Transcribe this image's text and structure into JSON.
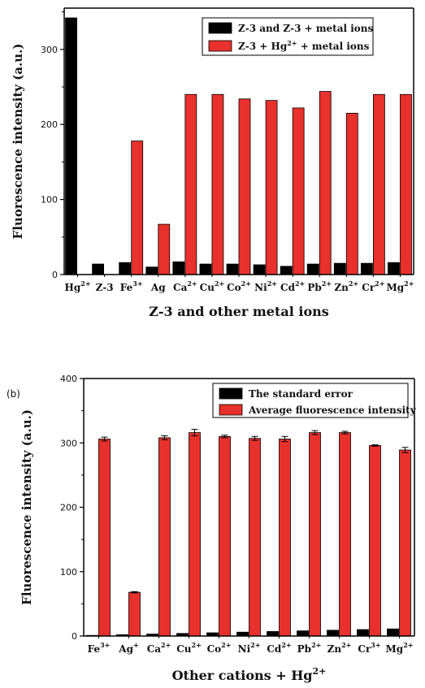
{
  "chart_data": [
    {
      "type": "bar",
      "panel_label": "",
      "categories": [
        "Hg2+",
        "Z-3",
        "Fe3+",
        "Ag",
        "Ca2+",
        "Cu2+",
        "Co2+",
        "Ni2+",
        "Cd2+",
        "Pb2+",
        "Zn2+",
        "Cr2+",
        "Mg2+"
      ],
      "tick_labels": [
        {
          "base": "Hg",
          "sup": "2+"
        },
        {
          "base": "Z-3",
          "sup": ""
        },
        {
          "base": "Fe",
          "sup": "3+"
        },
        {
          "base": "Ag",
          "sup": ""
        },
        {
          "base": "Ca",
          "sup": "2+"
        },
        {
          "base": "Cu",
          "sup": "2+"
        },
        {
          "base": "Co",
          "sup": "2+"
        },
        {
          "base": "Ni",
          "sup": "2+"
        },
        {
          "base": "Cd",
          "sup": "2+"
        },
        {
          "base": "Pb",
          "sup": "2+"
        },
        {
          "base": "Zn",
          "sup": "2+"
        },
        {
          "base": "Cr",
          "sup": "2+"
        },
        {
          "base": "Mg",
          "sup": "2+"
        }
      ],
      "series": [
        {
          "name": "Z-3 and Z-3 + metal ions",
          "legend_parts": [
            {
              "t": "Z-3 and Z-3 + metal ions"
            }
          ],
          "color": "#000000",
          "values": [
            342,
            14,
            16,
            10,
            17,
            14,
            14,
            13,
            11,
            14,
            15,
            15,
            16
          ]
        },
        {
          "name": "Z-3 + Hg2+ + metal ions",
          "legend_parts": [
            {
              "t": "Z-3 + Hg"
            },
            {
              "t": "2+",
              "sup": true
            },
            {
              "t": " + metal ions"
            }
          ],
          "color": "#e8302c",
          "values": [
            null,
            null,
            178,
            67,
            240,
            240,
            234,
            232,
            222,
            244,
            215,
            240,
            240
          ]
        }
      ],
      "xlabel": "Z-3 and other metal ions",
      "ylabel": "Fluorescence intensity (a.u.)",
      "yticks": [
        0,
        100,
        200,
        300
      ],
      "ylim": [
        0,
        355
      ],
      "grid": false,
      "legend_position": "top-right"
    },
    {
      "type": "bar",
      "panel_label": "(b)",
      "categories": [
        "Fe3+",
        "Ag+",
        "Ca2+",
        "Cu2+",
        "Co2+",
        "Ni2+",
        "Cd2+",
        "Pb2+",
        "Zn2+",
        "Cr3+",
        "Mg2+"
      ],
      "tick_labels": [
        {
          "base": "Fe",
          "sup": "3+"
        },
        {
          "base": "Ag",
          "sup": "+"
        },
        {
          "base": "Ca",
          "sup": "2+"
        },
        {
          "base": "Cu",
          "sup": "2+"
        },
        {
          "base": "Co",
          "sup": "2+"
        },
        {
          "base": "Ni",
          "sup": "2+"
        },
        {
          "base": "Cd",
          "sup": "2+"
        },
        {
          "base": "Pb",
          "sup": "2+"
        },
        {
          "base": "Zn",
          "sup": "2+"
        },
        {
          "base": "Cr",
          "sup": "3+"
        },
        {
          "base": "Mg",
          "sup": "2+"
        }
      ],
      "series": [
        {
          "name": "The standard error",
          "legend_parts": [
            {
              "t": "The standard error"
            }
          ],
          "color": "#000000",
          "values": [
            1,
            2,
            3,
            4,
            5,
            6,
            7,
            8,
            9,
            10,
            11
          ]
        },
        {
          "name": "Average fluorescence intensity",
          "legend_parts": [
            {
              "t": "Average fluorescence intensity"
            }
          ],
          "color": "#e8302c",
          "values": [
            306,
            68,
            308,
            316,
            310,
            307,
            306,
            316,
            316,
            296,
            289
          ],
          "errors": [
            3,
            1,
            3,
            5,
            2,
            3,
            4,
            3,
            2,
            1,
            4
          ]
        }
      ],
      "xlabel": "Other cations + Hg2+",
      "xlabel_parts": [
        {
          "t": "Other cations + Hg"
        },
        {
          "t": "2+",
          "sup": true
        }
      ],
      "ylabel": "Fluorescence intensity (a.u.)",
      "yticks": [
        0,
        100,
        200,
        300,
        400
      ],
      "ylim": [
        0,
        400
      ],
      "grid": false,
      "legend_position": "top-right"
    }
  ]
}
